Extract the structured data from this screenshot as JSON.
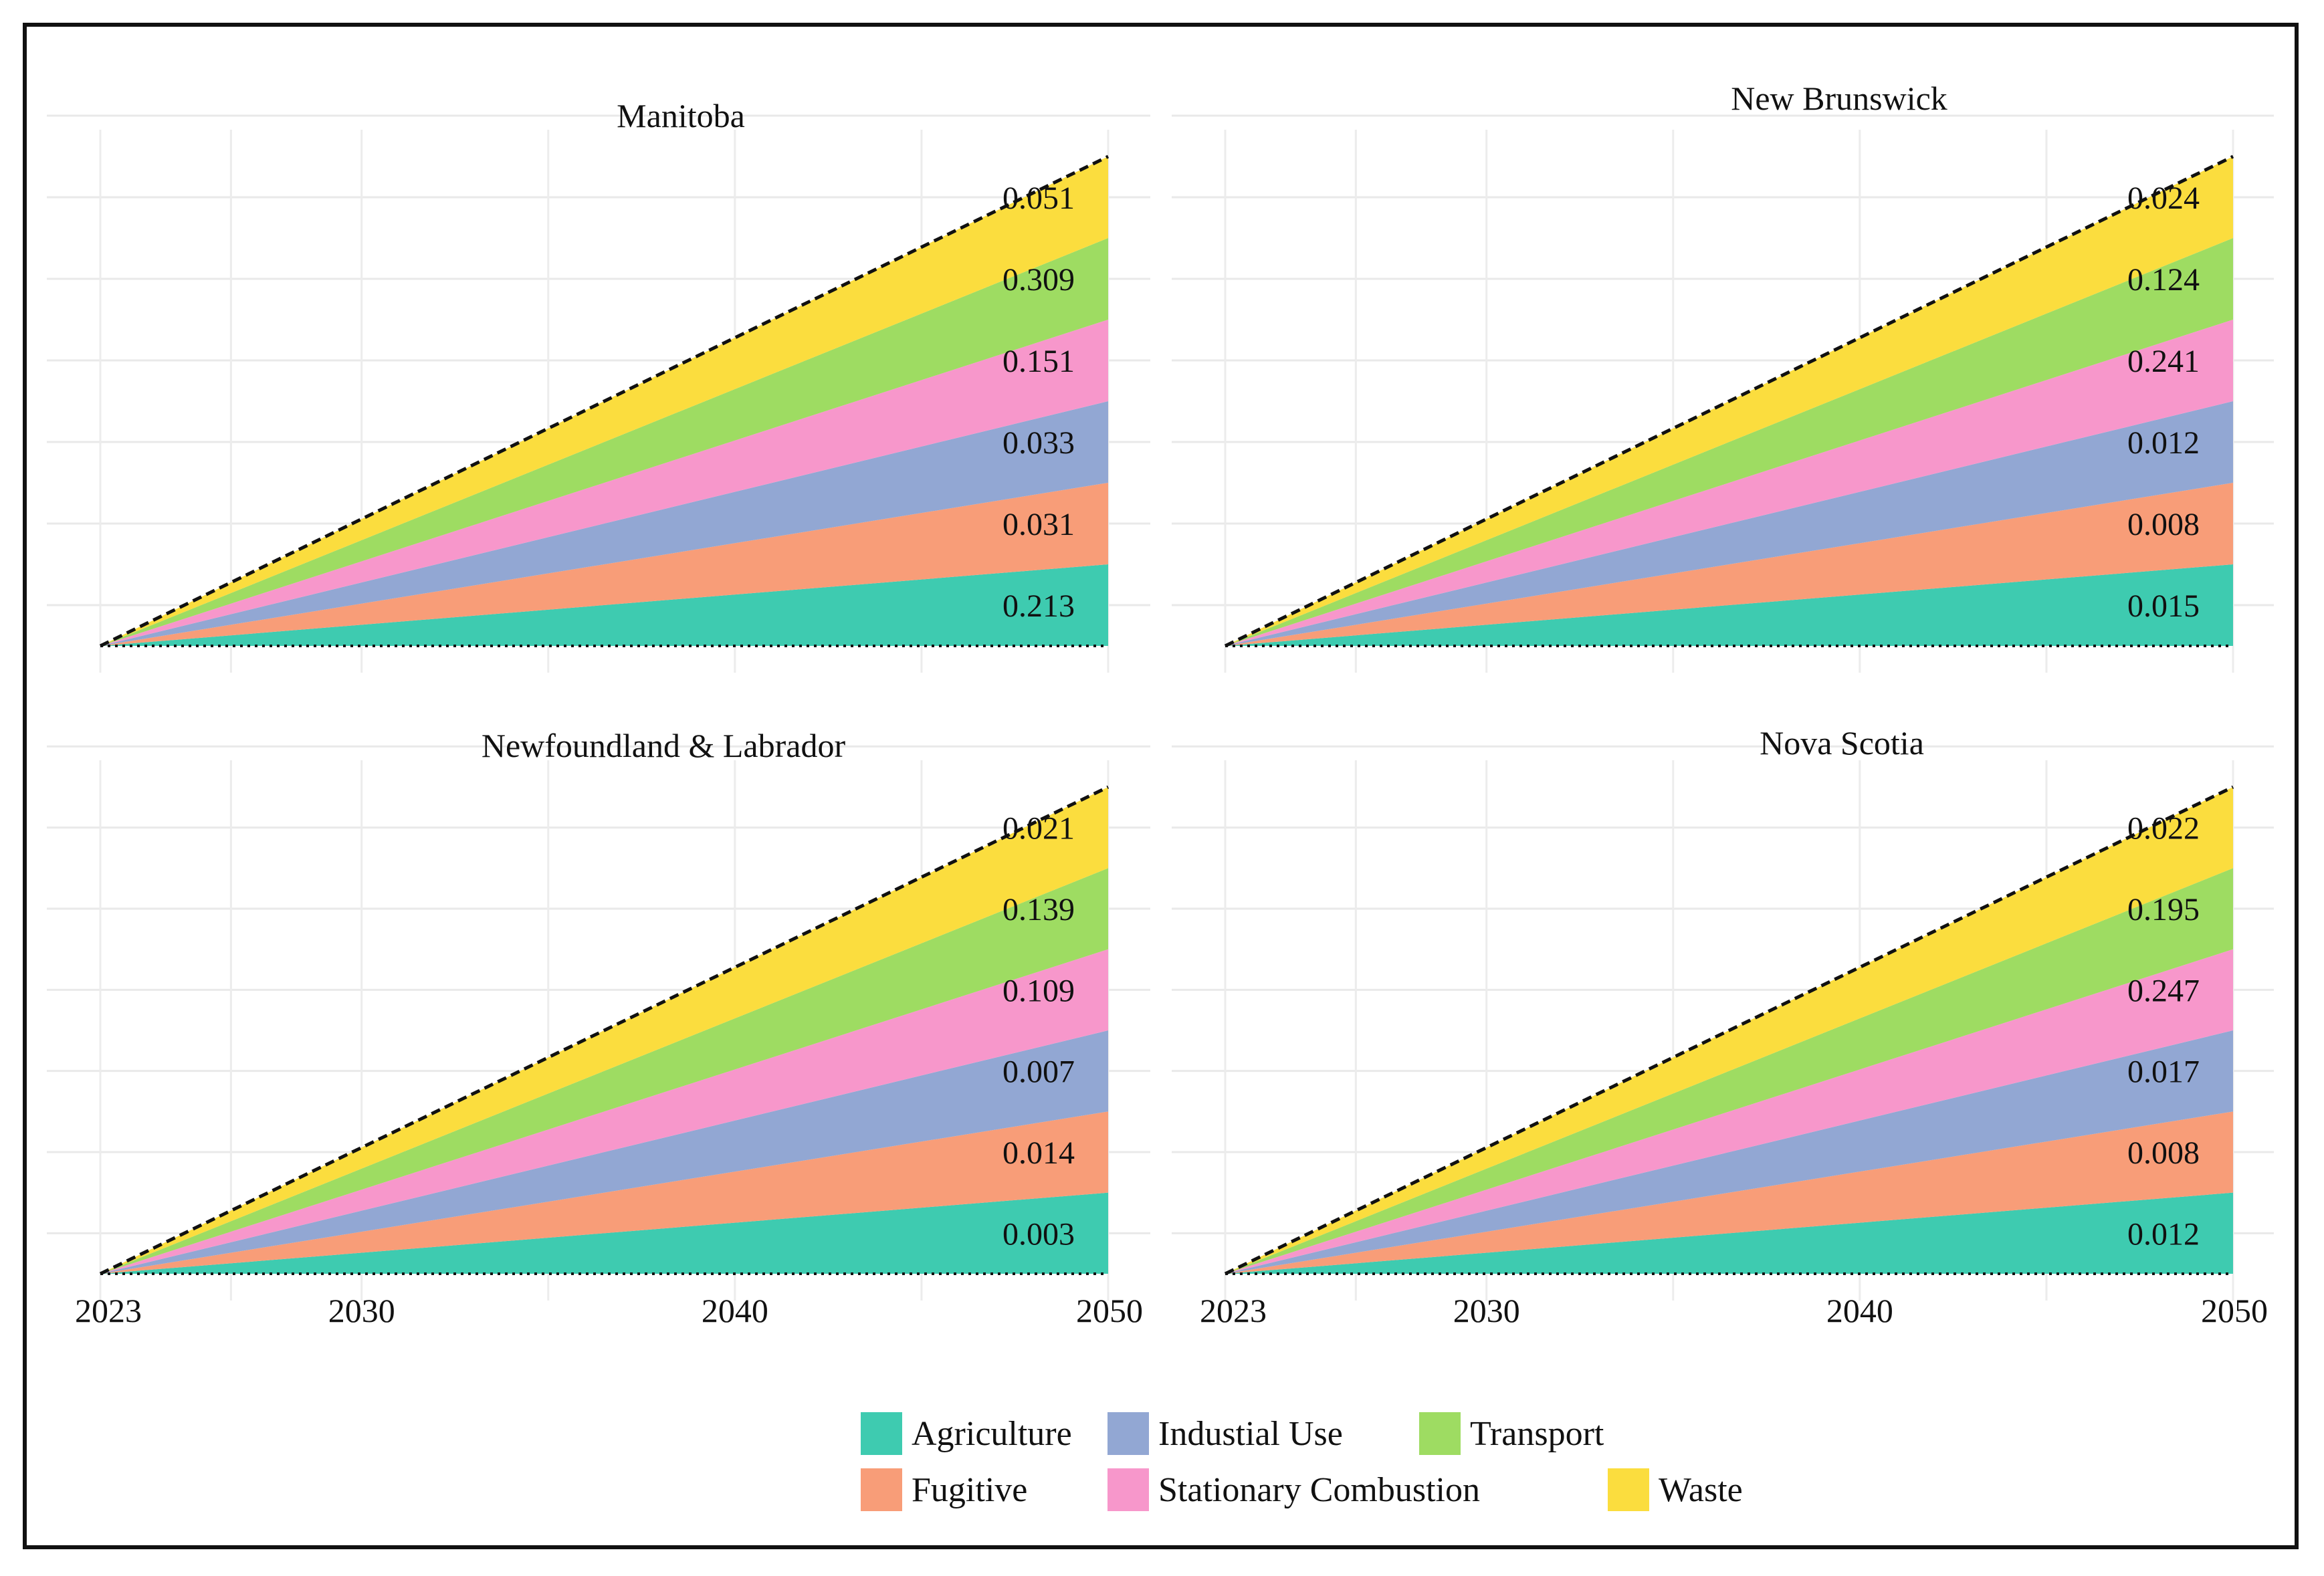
{
  "colors": {
    "Agriculture": "#3ecbb0",
    "Fugitive": "#f89d78",
    "Industial Use": "#92a7d3",
    "Stationary Combustion": "#f797cb",
    "Transport": "#9edc62",
    "Waste": "#fbdd3e"
  },
  "chart_data": {
    "type": "area",
    "layout": "2x2 facet grid",
    "x_ticks": [
      "2023",
      "2030",
      "2040",
      "2050"
    ],
    "xlim": [
      2023,
      2050
    ],
    "categories": [
      "Agriculture",
      "Fugitive",
      "Industial Use",
      "Stationary Combustion",
      "Transport",
      "Waste"
    ],
    "stack_order_bottom_to_top": [
      "Agriculture",
      "Fugitive",
      "Industial Use",
      "Stationary Combustion",
      "Transport",
      "Waste"
    ],
    "legend": {
      "placement": "bottom",
      "rows": [
        [
          "Agriculture",
          "Industial Use",
          "Transport"
        ],
        [
          "Fugitive",
          "Stationary Combustion",
          "Waste"
        ]
      ]
    },
    "panels": [
      {
        "title": "Manitoba",
        "show_x_axis": false,
        "series": [
          {
            "name": "Agriculture",
            "value_2050": "0.213"
          },
          {
            "name": "Fugitive",
            "value_2050": "0.031"
          },
          {
            "name": "Industial Use",
            "value_2050": "0.033"
          },
          {
            "name": "Stationary Combustion",
            "value_2050": "0.151"
          },
          {
            "name": "Transport",
            "value_2050": "0.309"
          },
          {
            "name": "Waste",
            "value_2050": "0.051"
          }
        ]
      },
      {
        "title": "New Brunswick",
        "show_x_axis": false,
        "series": [
          {
            "name": "Agriculture",
            "value_2050": "0.015"
          },
          {
            "name": "Fugitive",
            "value_2050": "0.008"
          },
          {
            "name": "Industial Use",
            "value_2050": "0.012"
          },
          {
            "name": "Stationary Combustion",
            "value_2050": "0.241"
          },
          {
            "name": "Transport",
            "value_2050": "0.124"
          },
          {
            "name": "Waste",
            "value_2050": "0.024"
          }
        ]
      },
      {
        "title": "Newfoundland & Labrador",
        "show_x_axis": true,
        "series": [
          {
            "name": "Agriculture",
            "value_2050": "0.003"
          },
          {
            "name": "Fugitive",
            "value_2050": "0.014"
          },
          {
            "name": "Industial Use",
            "value_2050": "0.007"
          },
          {
            "name": "Stationary Combustion",
            "value_2050": "0.109"
          },
          {
            "name": "Transport",
            "value_2050": "0.139"
          },
          {
            "name": "Waste",
            "value_2050": "0.021"
          }
        ]
      },
      {
        "title": "Nova Scotia",
        "show_x_axis": true,
        "series": [
          {
            "name": "Agriculture",
            "value_2050": "0.012"
          },
          {
            "name": "Fugitive",
            "value_2050": "0.008"
          },
          {
            "name": "Industial Use",
            "value_2050": "0.017"
          },
          {
            "name": "Stationary Combustion",
            "value_2050": "0.247"
          },
          {
            "name": "Transport",
            "value_2050": "0.195"
          },
          {
            "name": "Waste",
            "value_2050": "0.022"
          }
        ]
      }
    ]
  }
}
